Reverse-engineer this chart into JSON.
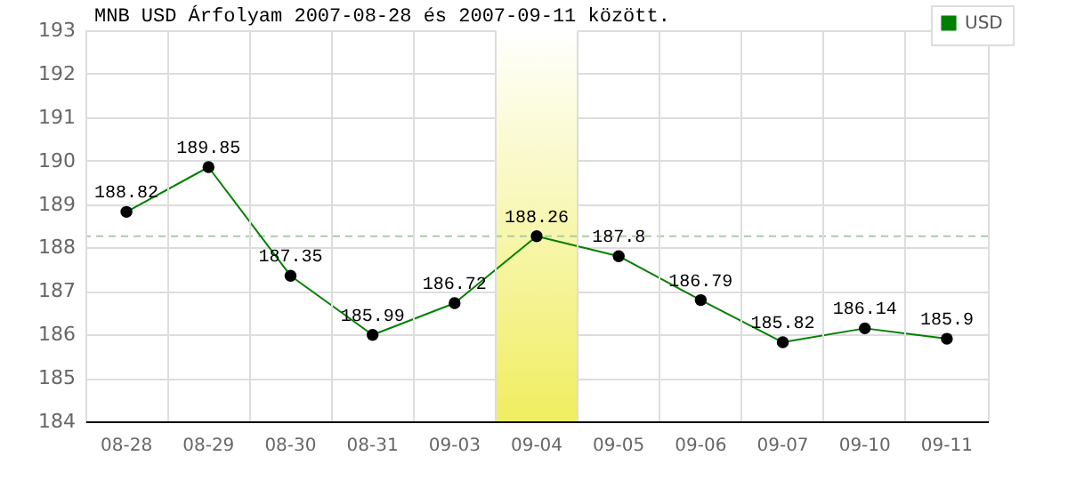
{
  "chart_data": {
    "type": "line",
    "title": "MNB USD Árfolyam 2007-08-28 és 2007-09-11 között.",
    "categories": [
      "08-28",
      "08-29",
      "08-30",
      "08-31",
      "09-03",
      "09-04",
      "09-05",
      "09-06",
      "09-07",
      "09-10",
      "09-11"
    ],
    "series": [
      {
        "name": "USD",
        "color": "#008000",
        "values": [
          188.82,
          189.85,
          187.35,
          185.99,
          186.72,
          188.26,
          187.8,
          186.79,
          185.82,
          186.14,
          185.9
        ]
      }
    ],
    "ylim": [
      184,
      193
    ],
    "yticks": [
      184,
      185,
      186,
      187,
      188,
      189,
      190,
      191,
      192,
      193
    ],
    "grid": true,
    "legend": "top right",
    "marker": "circle",
    "data_labels": true,
    "ref_lines": [
      {
        "axis": "y",
        "value": 188.26,
        "color": "#aaccaa",
        "line_style": "dashed"
      }
    ],
    "bands": [
      {
        "axis": "x",
        "from": "09-04",
        "to": "09-04",
        "color": "#f0ee60"
      }
    ]
  }
}
